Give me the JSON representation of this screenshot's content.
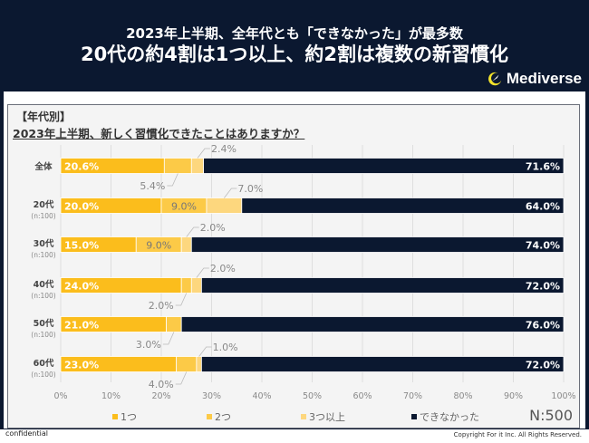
{
  "header": {
    "line1": "2023年上半期、全年代とも「できなかった」が最多数",
    "line2": "20代の約4割は1つ以上、約2割は複数の新習慣化",
    "brand": "Mediverse"
  },
  "section_label": "【年代別】",
  "question": "2023年上半期、新しく習慣化できたことはありますか？",
  "sample_size": "N:500",
  "footer": {
    "left": "confidential",
    "right": "Copyright For it Inc. All Rights Reserved."
  },
  "colors": {
    "one": "#fbbd1c",
    "two": "#fcca47",
    "three_plus": "#fdd77e",
    "none": "#0b1830",
    "background": "#0b1830"
  },
  "chart_data": {
    "type": "bar",
    "orientation": "horizontal-stacked-100",
    "title": "2023年上半期、新しく習慣化できたことはありますか？",
    "categories": [
      "全体",
      "20代",
      "30代",
      "40代",
      "50代",
      "60代"
    ],
    "category_sublabels": [
      "",
      "(n:100)",
      "(n:100)",
      "(n:100)",
      "(n:100)",
      "(n:100)"
    ],
    "series": [
      {
        "name": "1つ",
        "values": [
          20.6,
          20.0,
          15.0,
          24.0,
          21.0,
          23.0
        ]
      },
      {
        "name": "2つ",
        "values": [
          5.4,
          9.0,
          9.0,
          2.0,
          3.0,
          4.0
        ]
      },
      {
        "name": "3つ以上",
        "values": [
          2.4,
          7.0,
          2.0,
          2.0,
          0.0,
          1.0
        ]
      },
      {
        "name": "できなかった",
        "values": [
          71.6,
          64.0,
          74.0,
          72.0,
          76.0,
          72.0
        ]
      }
    ],
    "data_labels": [
      {
        "one": "20.6%",
        "two": "5.4%",
        "three": "2.4%",
        "none": "71.6%"
      },
      {
        "one": "20.0%",
        "two": "9.0%",
        "three": "7.0%",
        "none": "64.0%"
      },
      {
        "one": "15.0%",
        "two": "9.0%",
        "three": "2.0%",
        "none": "74.0%"
      },
      {
        "one": "24.0%",
        "two": "2.0%",
        "three": "2.0%",
        "none": "72.0%"
      },
      {
        "one": "21.0%",
        "two": "3.0%",
        "three": "",
        "none": "76.0%"
      },
      {
        "one": "23.0%",
        "two": "4.0%",
        "three": "1.0%",
        "none": "72.0%"
      }
    ],
    "xticks": [
      "0%",
      "10%",
      "20%",
      "30%",
      "40%",
      "50%",
      "60%",
      "70%",
      "80%",
      "90%",
      "100%"
    ],
    "xlim": [
      0,
      100
    ],
    "grid": true,
    "legend": [
      "1つ",
      "2つ",
      "3つ以上",
      "できなかった"
    ],
    "legend_position": "bottom"
  }
}
